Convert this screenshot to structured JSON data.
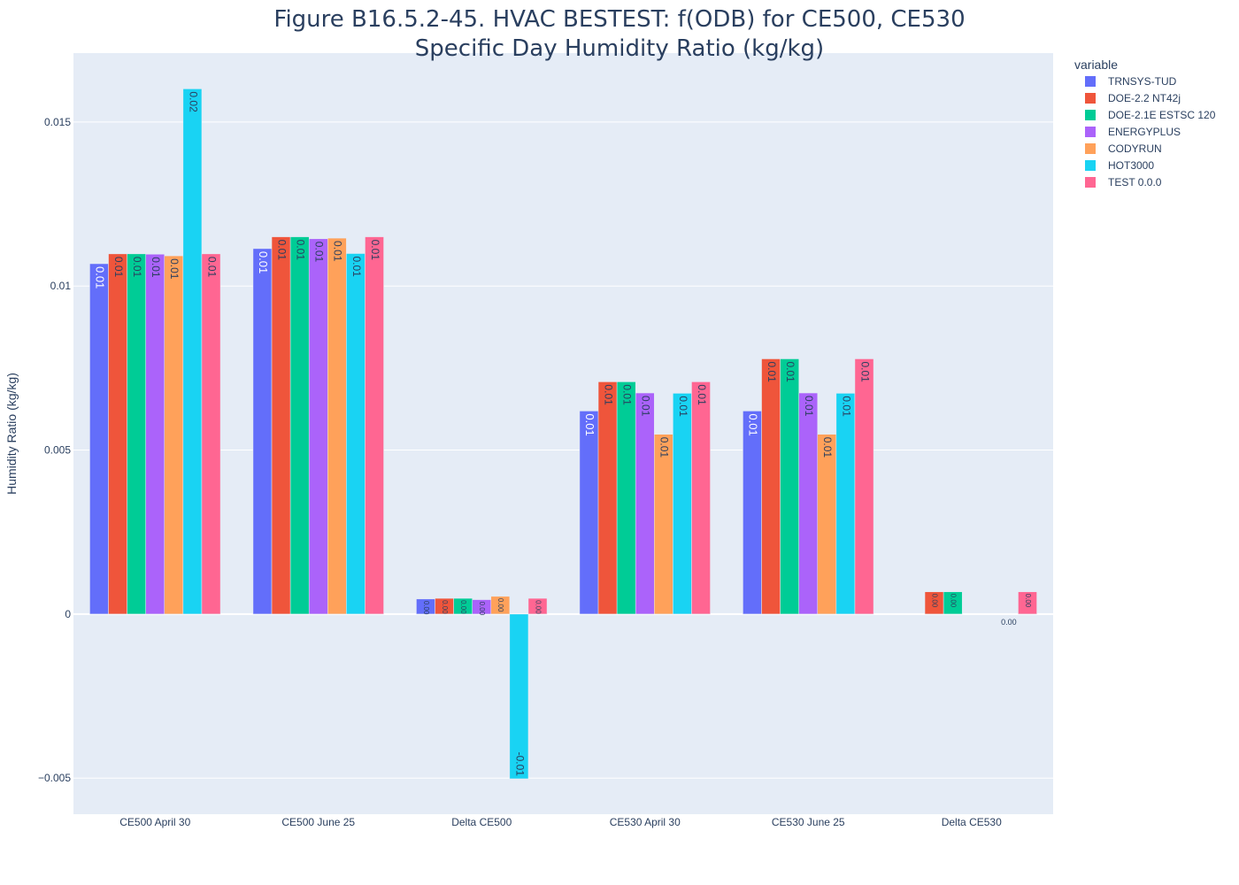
{
  "chart_data": {
    "type": "bar",
    "title_line1": "Figure B16.5.2-45. HVAC BESTEST: f(ODB) for CE500, CE530",
    "title_line2": "Specific Day Humidity Ratio (kg/kg)",
    "xlabel": "",
    "ylabel": "Humidity Ratio (kg/kg)",
    "ylim": [
      -0.0061,
      0.0171
    ],
    "yticks": [
      -0.005,
      0,
      0.005,
      0.01,
      0.015
    ],
    "ytick_labels": [
      "−0.005",
      "0",
      "0.005",
      "0.01",
      "0.015"
    ],
    "grid": true,
    "legend_title": "variable",
    "legend_position": "top-right",
    "categories": [
      "CE500 April 30",
      "CE500 June 25",
      "Delta CE500",
      "CE530 April 30",
      "CE530 June 25",
      "Delta CE530"
    ],
    "series": [
      {
        "name": "TRNSYS-TUD",
        "color": "#636efa",
        "values": [
          0.01068,
          0.01114,
          0.00046,
          0.00619,
          0.00619,
          0.0
        ],
        "labels": [
          "0.01",
          "0.01",
          "0.00",
          "0.01",
          "0.01",
          ""
        ]
      },
      {
        "name": "DOE-2.2 NT42j",
        "color": "#ef553b",
        "values": [
          0.01098,
          0.0115,
          0.00048,
          0.00708,
          0.00778,
          0.00068
        ],
        "labels": [
          "0.01",
          "0.01",
          "0.00",
          "0.01",
          "0.01",
          "0.00"
        ]
      },
      {
        "name": "DOE-2.1E ESTSC 120",
        "color": "#00cc96",
        "values": [
          0.01098,
          0.0115,
          0.00048,
          0.00708,
          0.00778,
          0.00068
        ],
        "labels": [
          "0.01",
          "0.01",
          "0.00",
          "0.01",
          "0.01",
          "0.00"
        ]
      },
      {
        "name": "ENERGYPLUS",
        "color": "#ab63fa",
        "values": [
          0.01097,
          0.01144,
          0.00044,
          0.00674,
          0.00674,
          0.0
        ],
        "labels": [
          "0.01",
          "0.01",
          "0.00",
          "0.01",
          "0.01",
          ""
        ]
      },
      {
        "name": "CODYRUN",
        "color": "#ffa15a",
        "values": [
          0.01092,
          0.01146,
          0.00054,
          0.00548,
          0.00548,
          0.0
        ],
        "labels": [
          "0.01",
          "0.01",
          "0.00",
          "0.01",
          "0.01",
          ""
        ]
      },
      {
        "name": "HOT3000",
        "color": "#19d3f3",
        "values": [
          0.01601,
          0.01099,
          -0.00502,
          0.00673,
          0.00673,
          0.0
        ],
        "labels": [
          "0.02",
          "0.01",
          "-0.01",
          "0.01",
          "0.01",
          "0.00"
        ]
      },
      {
        "name": "TEST 0.0.0",
        "color": "#ff6692",
        "values": [
          0.01098,
          0.0115,
          0.00048,
          0.00708,
          0.00778,
          0.00068
        ],
        "labels": [
          "0.01",
          "0.01",
          "0.00",
          "0.01",
          "0.01",
          "0.00"
        ]
      }
    ]
  }
}
